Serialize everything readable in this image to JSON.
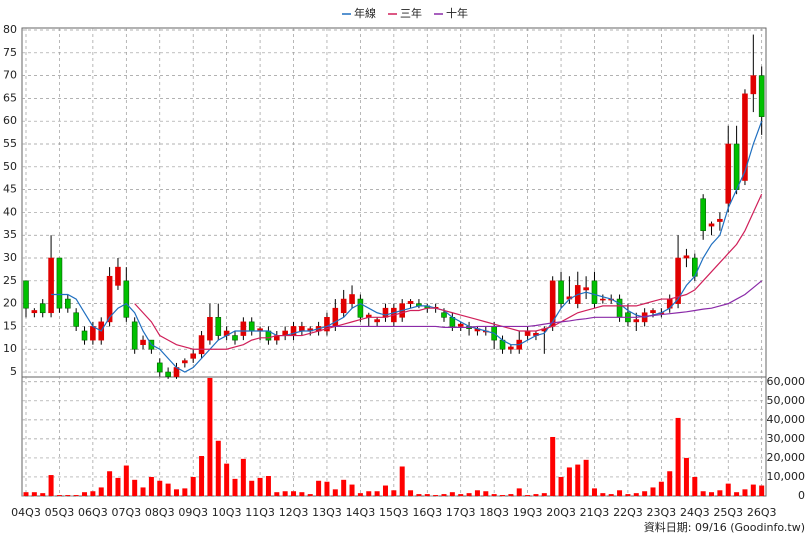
{
  "chart_data": [
    {
      "type": "candlestick",
      "categories": [
        "04Q3",
        null,
        null,
        null,
        "05Q3",
        null,
        null,
        null,
        "06Q3",
        null,
        null,
        null,
        "07Q3",
        null,
        null,
        null,
        "08Q3",
        null,
        null,
        null,
        "09Q3",
        null,
        null,
        null,
        "10Q3",
        null,
        null,
        null,
        "11Q3",
        null,
        null,
        null,
        "12Q3",
        null,
        null,
        null,
        "13Q3",
        null,
        null,
        null,
        "14Q3",
        null,
        null,
        null,
        "15Q3",
        null,
        null,
        null,
        "16Q3",
        null,
        null,
        null,
        "17Q3",
        null,
        null,
        null,
        "18Q3",
        null,
        null,
        null,
        "19Q3",
        null,
        null,
        null,
        "20Q3",
        null,
        null,
        null,
        "21Q3",
        null,
        null,
        null,
        "22Q3",
        null,
        null,
        null,
        "23Q3",
        null,
        null,
        null,
        "24Q3",
        null,
        null,
        null,
        "25Q3",
        null,
        null,
        null,
        "26Q3"
      ],
      "open": [
        25,
        18,
        20,
        18,
        30,
        21,
        18,
        14,
        12,
        12,
        16,
        24,
        25,
        16,
        11,
        12,
        7,
        5,
        4,
        7,
        8,
        9,
        12,
        17,
        13,
        13,
        13,
        16,
        14,
        14,
        12,
        13,
        13,
        14,
        14,
        14,
        14,
        15,
        18,
        20,
        21,
        17,
        16,
        17,
        16,
        17,
        20,
        20,
        19.5,
        19,
        18,
        17,
        15,
        15,
        14,
        14,
        15,
        12,
        10,
        10,
        13,
        13,
        14,
        15,
        25,
        21,
        20,
        23,
        25,
        21,
        21,
        21,
        18,
        16,
        16,
        18,
        18,
        19,
        20,
        30,
        30,
        43,
        37,
        38,
        42,
        55,
        47,
        66,
        70
      ],
      "high": [
        25,
        19,
        21,
        35,
        30,
        22,
        19,
        15,
        16,
        17,
        28,
        30,
        28,
        17,
        13,
        12,
        8,
        6,
        7,
        8,
        10,
        14,
        20,
        20,
        15,
        14,
        17,
        17,
        15,
        15,
        14,
        15,
        16,
        16,
        15,
        16,
        18,
        21,
        23,
        24,
        22,
        18,
        17,
        20,
        20,
        21,
        21,
        21,
        20,
        20,
        19,
        18,
        16,
        16,
        15,
        15,
        16,
        13,
        11,
        14,
        15,
        14,
        15,
        26,
        27,
        26,
        27,
        26,
        27,
        22,
        22,
        22,
        20,
        18,
        19,
        19,
        19,
        22,
        35,
        32,
        31,
        44,
        38,
        40,
        59,
        59,
        67,
        79,
        72
      ],
      "low": [
        17,
        17,
        17,
        17,
        18,
        18,
        14,
        11,
        11,
        11,
        15,
        23,
        16,
        9,
        10,
        9,
        4,
        3.5,
        3.5,
        6,
        7,
        8,
        11,
        12,
        12,
        11,
        12,
        13,
        12,
        11,
        11,
        12,
        12,
        13,
        13,
        13,
        13,
        14,
        17,
        19,
        16,
        15,
        15,
        16,
        15,
        16,
        19,
        19,
        18,
        18,
        16,
        14,
        14,
        13,
        13,
        13,
        10,
        9,
        9,
        9,
        12,
        12,
        9,
        14,
        19,
        20,
        19,
        21,
        19,
        20,
        20,
        16,
        15,
        14,
        15,
        17,
        17,
        18,
        19,
        28,
        25,
        34,
        35,
        36,
        40,
        44,
        46,
        62,
        57
      ],
      "close": [
        19,
        18.5,
        18,
        30,
        19,
        19,
        15,
        12,
        15,
        16,
        26,
        28,
        17,
        10,
        12,
        10,
        5,
        4,
        6,
        7.5,
        9,
        13,
        17,
        13,
        14,
        12,
        16,
        14,
        14.5,
        12,
        13,
        14,
        15,
        15,
        14.5,
        15,
        17,
        19,
        21,
        22,
        17,
        17.5,
        16.5,
        19,
        19,
        20,
        20.5,
        19.5,
        19,
        19.2,
        17,
        15,
        15.5,
        14.5,
        14.5,
        14,
        12,
        10,
        10.5,
        12,
        14,
        13.5,
        14.5,
        25,
        20,
        21.5,
        24,
        23.5,
        20,
        21,
        21,
        17,
        16,
        16.5,
        18,
        18.5,
        18,
        21,
        30,
        30.5,
        26,
        36,
        37.5,
        38.5,
        55,
        45,
        66,
        70,
        61
      ],
      "up_color": "#e00000",
      "down_color": "#00c000",
      "series": [
        {
          "name": "年線",
          "color": "#1f6fc0",
          "values": [
            null,
            null,
            null,
            22,
            22,
            22,
            21,
            18,
            15,
            14,
            17,
            19,
            20,
            18,
            14,
            11,
            10,
            8,
            6,
            5,
            6,
            8,
            10,
            12,
            13,
            14,
            14,
            14,
            14,
            14,
            13,
            13,
            13.5,
            14,
            14,
            14.5,
            15,
            16,
            17,
            19,
            20,
            19,
            18,
            17.5,
            18,
            18.5,
            19,
            19.5,
            19.5,
            19,
            18.5,
            17,
            16,
            15,
            14.5,
            14,
            13.5,
            12,
            11,
            11,
            12,
            13,
            13.5,
            16,
            19,
            21,
            22,
            22.5,
            22,
            21.5,
            21,
            20,
            18.5,
            17.5,
            17,
            17.5,
            18,
            19,
            21,
            24,
            26,
            30,
            33,
            35,
            41,
            45,
            49,
            55,
            60
          ]
        },
        {
          "name": "三年",
          "color": "#d0205a",
          "values": [
            null,
            null,
            null,
            null,
            null,
            null,
            null,
            null,
            null,
            null,
            null,
            null,
            null,
            20,
            18,
            16,
            13,
            12,
            11,
            10.5,
            10,
            10,
            10,
            10,
            10,
            10.5,
            11,
            12,
            12.5,
            12.5,
            13,
            13,
            13,
            13,
            13.5,
            14,
            14.5,
            15,
            15.5,
            16,
            16.5,
            17,
            17,
            17,
            17.5,
            18,
            18.5,
            18.5,
            19,
            19,
            18.5,
            18,
            17.5,
            17,
            16.5,
            16,
            15.5,
            15,
            14.5,
            14,
            14,
            14,
            14.5,
            15,
            16,
            17,
            18,
            18.5,
            19,
            19.5,
            19.5,
            19.5,
            19.5,
            19.5,
            20,
            20.5,
            21,
            21,
            21.5,
            22,
            23,
            25,
            27,
            29,
            31,
            33,
            36,
            40,
            44
          ]
        },
        {
          "name": "十年",
          "color": "#8a2aa8",
          "values": [
            null,
            null,
            null,
            null,
            null,
            null,
            null,
            null,
            null,
            null,
            null,
            null,
            null,
            null,
            null,
            null,
            null,
            null,
            null,
            null,
            null,
            null,
            null,
            null,
            null,
            null,
            null,
            null,
            null,
            null,
            null,
            null,
            null,
            null,
            null,
            null,
            15,
            15,
            15,
            15,
            15,
            15,
            15,
            15,
            15,
            15,
            15,
            15,
            15,
            15,
            14.8,
            14.8,
            14.8,
            14.8,
            15,
            15,
            15,
            15,
            15,
            15,
            15,
            15.2,
            15.5,
            15.8,
            16,
            16.2,
            16.5,
            16.7,
            17,
            17,
            17,
            17,
            17,
            17,
            17.2,
            17.4,
            17.6,
            17.8,
            18,
            18.2,
            18.5,
            18.8,
            19,
            19.5,
            20,
            21,
            22,
            23.5,
            25
          ]
        }
      ],
      "ylim": [
        4,
        80
      ],
      "yticks": [
        5,
        10,
        15,
        20,
        25,
        30,
        35,
        40,
        45,
        50,
        55,
        60,
        65,
        70,
        75,
        80
      ],
      "grid": true
    },
    {
      "type": "bar",
      "color": "#ff0000",
      "values": [
        2000,
        2000,
        1500,
        11000,
        500,
        500,
        500,
        2000,
        2500,
        4500,
        13000,
        9500,
        16000,
        8500,
        4500,
        10000,
        8000,
        6500,
        3500,
        4000,
        10000,
        21000,
        62000,
        29000,
        17000,
        9000,
        19500,
        8000,
        9500,
        10500,
        2000,
        2500,
        2500,
        2000,
        1000,
        8000,
        7500,
        3500,
        8500,
        6000,
        1500,
        2500,
        2500,
        5500,
        3000,
        15500,
        3000,
        1000,
        1000,
        500,
        1000,
        2000,
        1000,
        1500,
        3000,
        2500,
        1000,
        500,
        1000,
        4000,
        500,
        1000,
        1500,
        31000,
        10000,
        15000,
        16500,
        19000,
        4000,
        1500,
        1000,
        3000,
        1000,
        1500,
        2500,
        4500,
        7500,
        13000,
        41000,
        20000,
        10000,
        2500,
        2000,
        3000,
        6500,
        2000,
        3500,
        6000,
        5500
      ],
      "ylim": [
        0,
        62500
      ],
      "yticks": [
        0,
        {
          "value": 10000,
          "label": "10,000"
        },
        {
          "value": 20000,
          "label": "20,000"
        },
        {
          "value": 30000,
          "label": "30,000"
        },
        {
          "value": 40000,
          "label": "40,000"
        },
        {
          "value": 50000,
          "label": "50,000"
        },
        {
          "value": 60000,
          "label": "60,000"
        }
      ],
      "grid": true
    }
  ],
  "source_note": "資料日期: 09/16 (Goodinfo.tw)"
}
